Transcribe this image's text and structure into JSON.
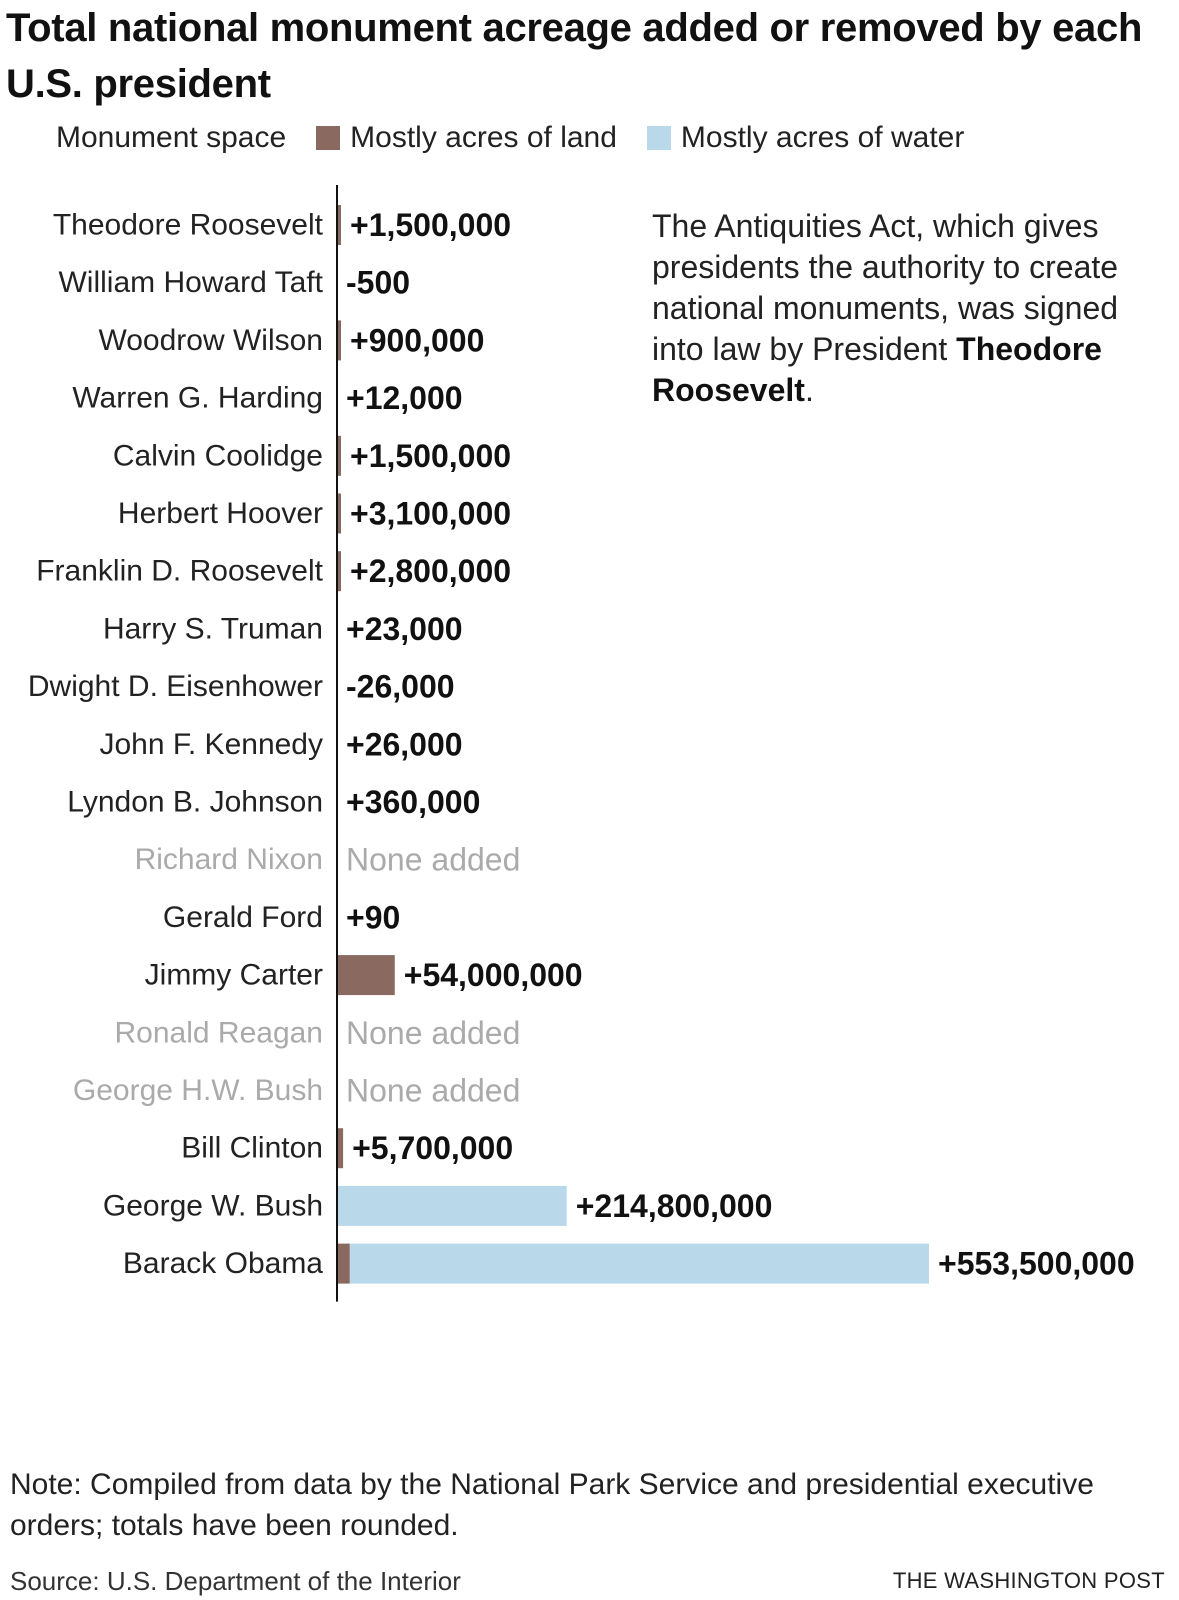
{
  "chart_data": {
    "type": "bar",
    "title": "Total national monument acreage added or removed by each U.S. president",
    "legend": {
      "title": "Monument space",
      "entries": [
        {
          "name": "Mostly acres of land",
          "color": "#8a6a60"
        },
        {
          "name": "Mostly acres of water",
          "color": "#b9d9ea"
        }
      ],
      "placement": "top"
    },
    "orientation": "horizontal",
    "grid": false,
    "xlim": [
      0,
      553500000
    ],
    "categories": [
      "Theodore Roosevelt",
      "William Howard Taft",
      "Woodrow Wilson",
      "Warren G. Harding",
      "Calvin Coolidge",
      "Herbert Hoover",
      "Franklin D. Roosevelt",
      "Harry S. Truman",
      "Dwight D. Eisenhower",
      "John F. Kennedy",
      "Lyndon B. Johnson",
      "Richard Nixon",
      "Gerald Ford",
      "Jimmy Carter",
      "Ronald Reagan",
      "George H.W. Bush",
      "Bill Clinton",
      "George W. Bush",
      "Barack Obama"
    ],
    "values": [
      1500000,
      -500,
      900000,
      12000,
      1500000,
      3100000,
      2800000,
      23000,
      -26000,
      26000,
      360000,
      0,
      90,
      54000000,
      0,
      0,
      5700000,
      214800000,
      553500000
    ],
    "value_labels": [
      "+1,500,000",
      "-500",
      "+900,000",
      "+12,000",
      "+1,500,000",
      "+3,100,000",
      "+2,800,000",
      "+23,000",
      "-26,000",
      "+26,000",
      "+360,000",
      "None added",
      "+90",
      "+54,000,000",
      "None added",
      "None added",
      "+5,700,000",
      "+214,800,000",
      "+553,500,000"
    ],
    "land_values": [
      1500000,
      0,
      900000,
      12000,
      1500000,
      3100000,
      2800000,
      23000,
      0,
      26000,
      360000,
      0,
      90,
      54000000,
      0,
      0,
      5700000,
      0,
      12000000
    ],
    "water_values": [
      0,
      0,
      0,
      0,
      0,
      0,
      0,
      0,
      0,
      0,
      0,
      0,
      0,
      0,
      0,
      0,
      0,
      214800000,
      541500000
    ],
    "none_added": [
      false,
      false,
      false,
      false,
      false,
      false,
      false,
      false,
      false,
      false,
      false,
      true,
      false,
      false,
      true,
      true,
      false,
      false,
      false
    ],
    "annotation": {
      "text": "The Antiquities Act, which gives presidents the authority to create national monuments, was signed into law by President ",
      "bold": "Theodore Roosevelt",
      "end": "."
    }
  },
  "colors": {
    "land": "#8a6a60",
    "water": "#b9d9ea",
    "text": "#111111",
    "muted": "#aaaaaa",
    "axis": "#111111"
  },
  "footer": {
    "note": "Note: Compiled from data by the National Park Service and presidential executive orders; totals have been rounded.",
    "source": "Source: U.S. Department of the Interior",
    "credit": "THE WASHINGTON POST"
  }
}
